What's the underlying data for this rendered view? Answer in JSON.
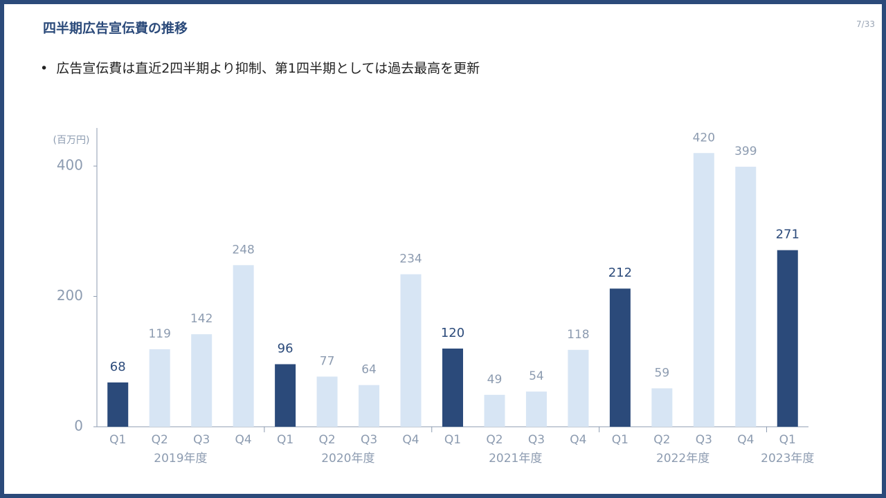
{
  "slide": {
    "title": "四半期広告宣伝費の推移",
    "page_number": "7/33",
    "bullet": "広告宣伝費は直近2四半期より抑制、第1四半期としては過去最高を更新"
  },
  "chart_data": {
    "type": "bar",
    "unit_label": "(百万円)",
    "categories": [
      "Q1",
      "Q2",
      "Q3",
      "Q4",
      "Q1",
      "Q2",
      "Q3",
      "Q4",
      "Q1",
      "Q2",
      "Q3",
      "Q4",
      "Q1",
      "Q2",
      "Q3",
      "Q4",
      "Q1"
    ],
    "groups": [
      "2019年度",
      "2020年度",
      "2021年度",
      "2022年度",
      "2023年度"
    ],
    "values": [
      68,
      119,
      142,
      248,
      96,
      77,
      64,
      234,
      120,
      49,
      54,
      118,
      212,
      59,
      420,
      399,
      271
    ],
    "colors": [
      "#2b4a7a",
      "#d7e5f4",
      "#d7e5f4",
      "#d7e5f4",
      "#2b4a7a",
      "#d7e5f4",
      "#d7e5f4",
      "#d7e5f4",
      "#2b4a7a",
      "#d7e5f4",
      "#d7e5f4",
      "#d7e5f4",
      "#2b4a7a",
      "#d7e5f4",
      "#d7e5f4",
      "#d7e5f4",
      "#2b4a7a"
    ],
    "label_colors": [
      "#2b4a7a",
      "#8c9bb0",
      "#8c9bb0",
      "#8c9bb0",
      "#2b4a7a",
      "#8c9bb0",
      "#8c9bb0",
      "#8c9bb0",
      "#2b4a7a",
      "#8c9bb0",
      "#8c9bb0",
      "#8c9bb0",
      "#2b4a7a",
      "#8c9bb0",
      "#8c9bb0",
      "#8c9bb0",
      "#2b4a7a"
    ],
    "ylim": [
      0,
      450
    ],
    "yticks": [
      0,
      200,
      400
    ],
    "grid": false
  }
}
